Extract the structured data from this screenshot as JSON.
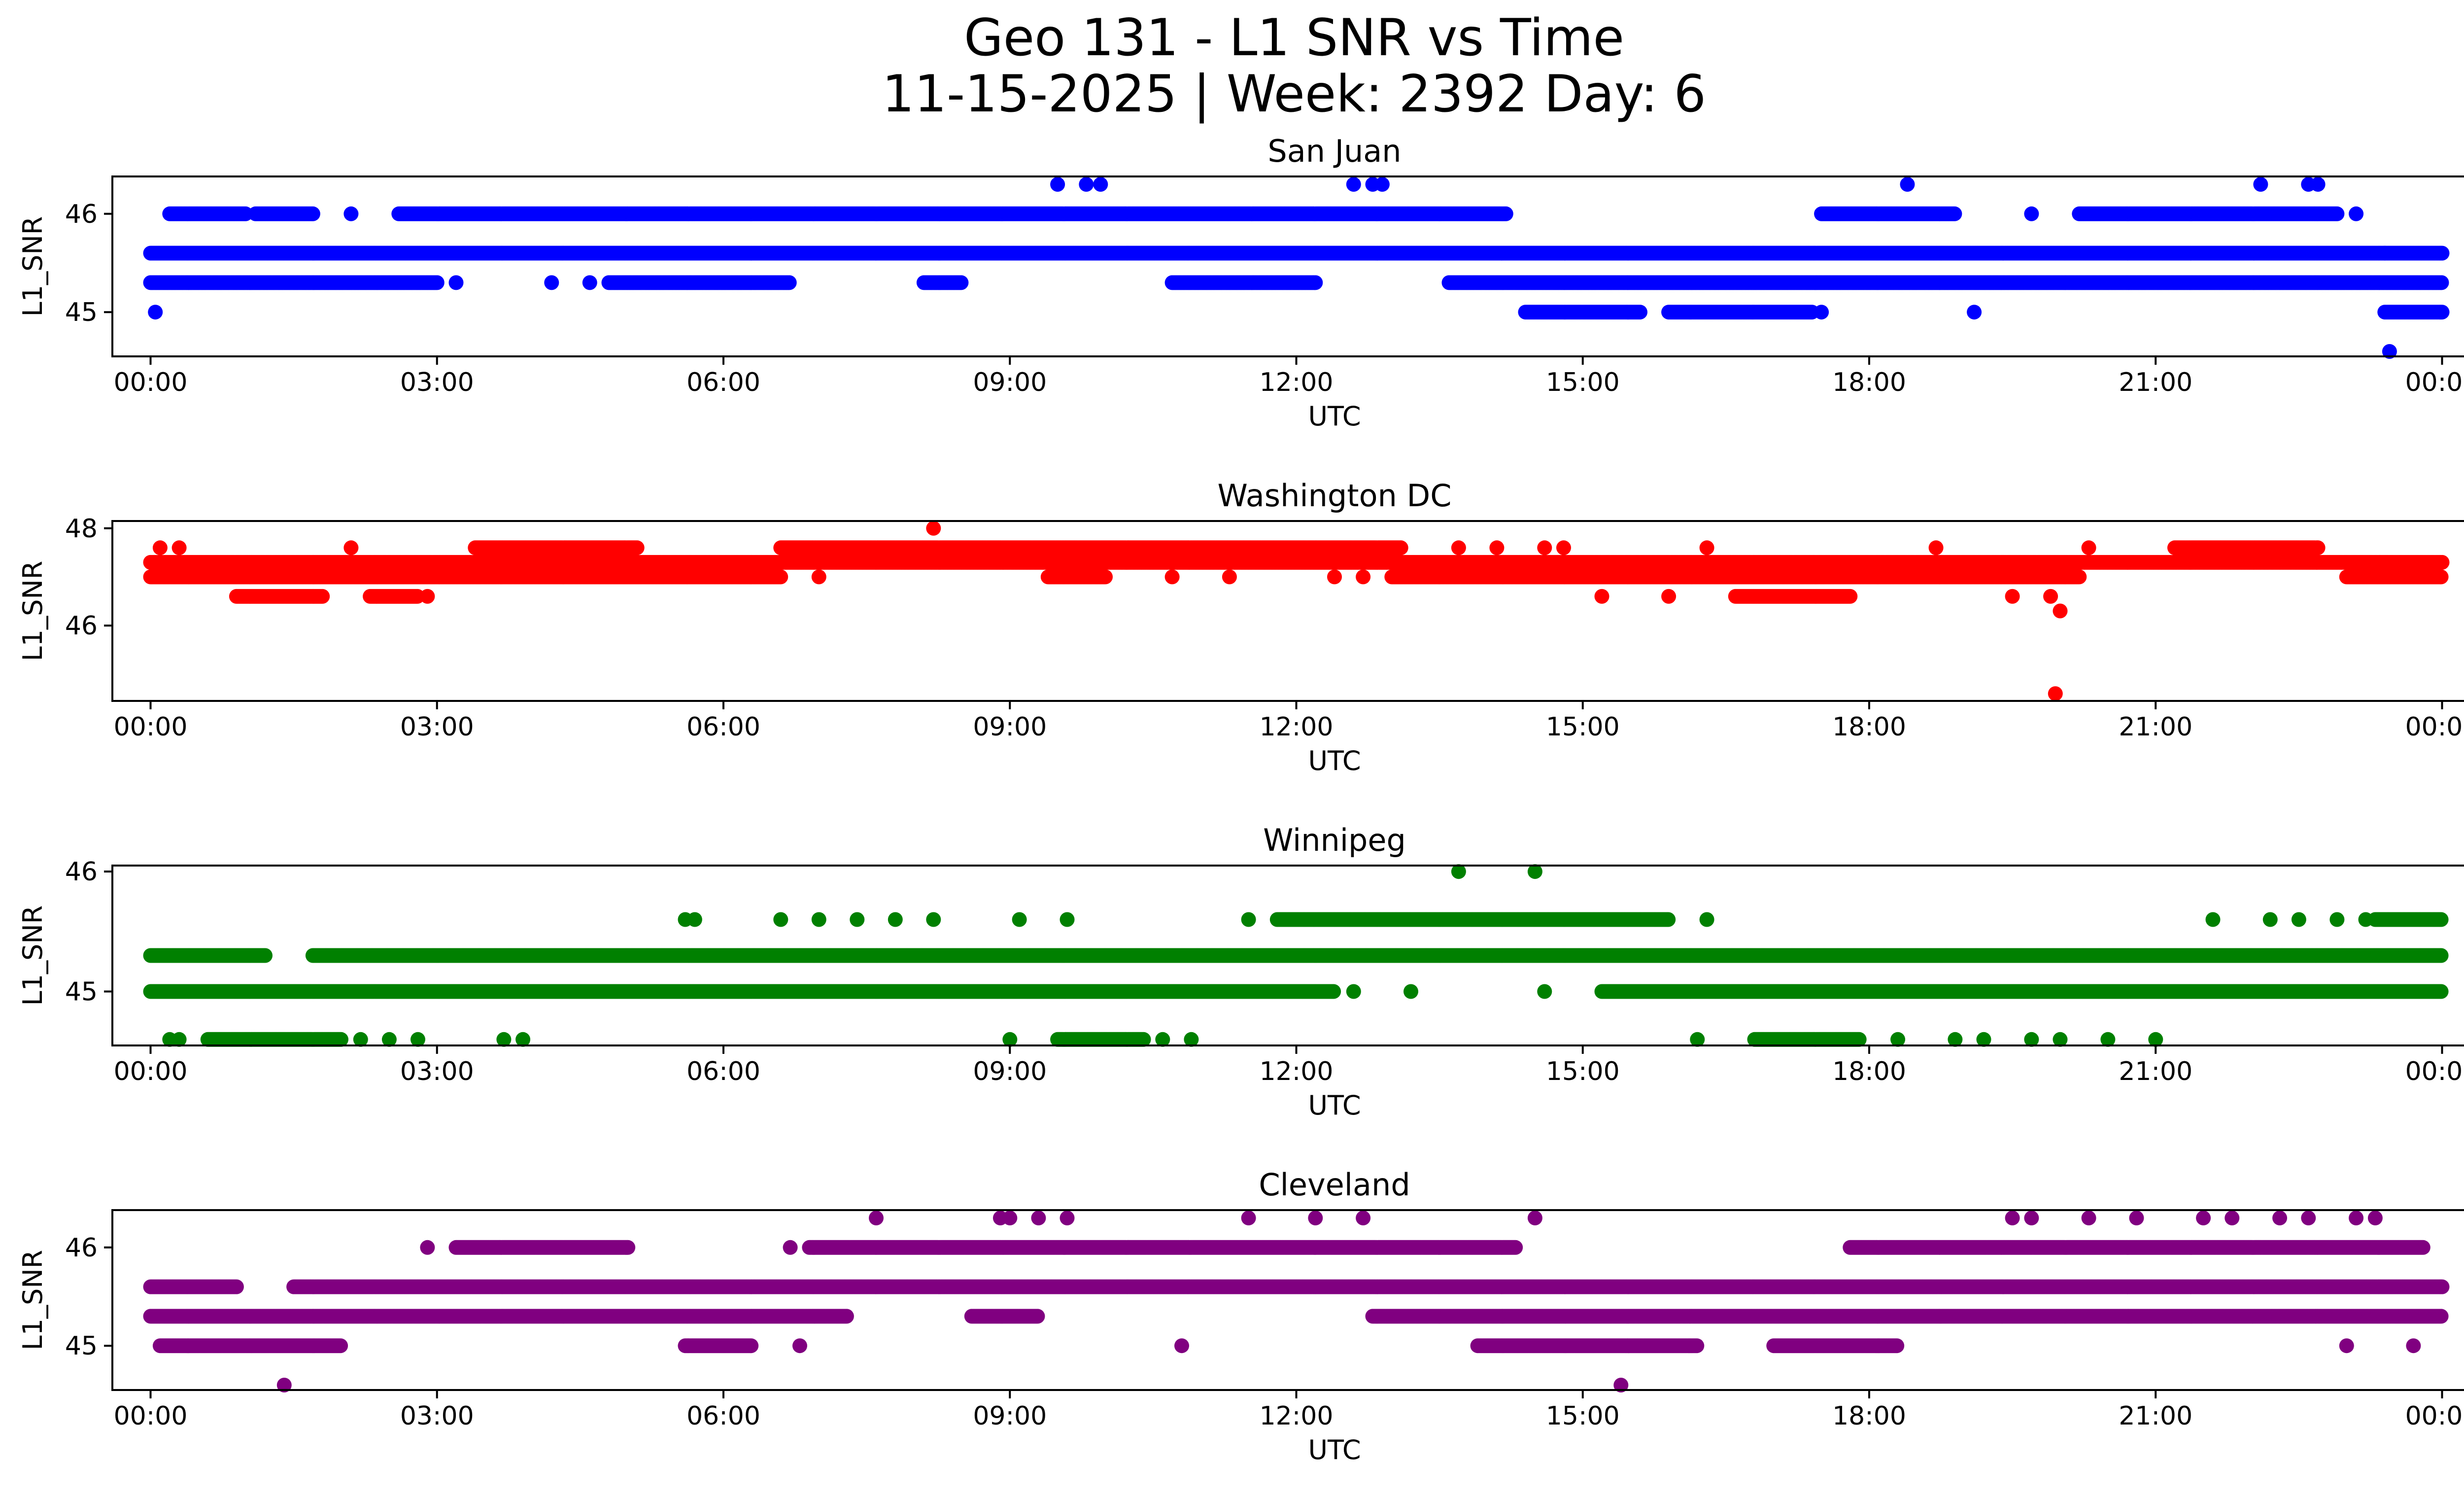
{
  "figure": {
    "title_line1": "Geo 131 - L1 SNR vs Time",
    "title_line2": "11-15-2025 | Week: 2392 Day: 6"
  },
  "chart_data": [
    {
      "type": "scatter",
      "title": "San Juan",
      "xlabel": "UTC",
      "ylabel": "L1_SNR",
      "color": "#0000ff",
      "xlim_hours": [
        -0.4,
        25.2
      ],
      "ylim": [
        44.55,
        46.38
      ],
      "xticks": [
        "00:00",
        "03:00",
        "06:00",
        "09:00",
        "12:00",
        "15:00",
        "18:00",
        "21:00",
        "00:00"
      ],
      "yticks": [
        "45",
        "46"
      ],
      "yticks_values": [
        45,
        46
      ],
      "bands": [
        {
          "y": 45.6,
          "ranges": [
            [
              0,
              24
            ]
          ]
        },
        {
          "y": 46.0,
          "ranges": [
            [
              0.2,
              1.0
            ],
            [
              1.1,
              1.7
            ],
            [
              2.6,
              14.2
            ],
            [
              17.5,
              18.9
            ],
            [
              20.2,
              22.9
            ]
          ]
        },
        {
          "y": 45.3,
          "ranges": [
            [
              0,
              3.0
            ],
            [
              4.8,
              6.7
            ],
            [
              8.1,
              8.5
            ],
            [
              10.7,
              12.2
            ],
            [
              13.6,
              24
            ]
          ]
        },
        {
          "y": 45.0,
          "ranges": [
            [
              14.4,
              15.6
            ],
            [
              15.9,
              17.4
            ],
            [
              23.4,
              24
            ]
          ]
        }
      ],
      "points": [
        {
          "x": 0.05,
          "y": 45.0
        },
        {
          "x": 2.1,
          "y": 46.0
        },
        {
          "x": 3.2,
          "y": 45.3
        },
        {
          "x": 4.2,
          "y": 45.3
        },
        {
          "x": 4.6,
          "y": 45.3
        },
        {
          "x": 9.5,
          "y": 46.3
        },
        {
          "x": 9.8,
          "y": 46.3
        },
        {
          "x": 9.95,
          "y": 46.3
        },
        {
          "x": 12.6,
          "y": 46.3
        },
        {
          "x": 12.8,
          "y": 46.3
        },
        {
          "x": 12.9,
          "y": 46.3
        },
        {
          "x": 17.5,
          "y": 45.0
        },
        {
          "x": 18.4,
          "y": 46.3
        },
        {
          "x": 19.1,
          "y": 45.0
        },
        {
          "x": 19.7,
          "y": 46.0
        },
        {
          "x": 22.1,
          "y": 46.3
        },
        {
          "x": 22.6,
          "y": 46.3
        },
        {
          "x": 22.7,
          "y": 46.3
        },
        {
          "x": 23.1,
          "y": 46.0
        },
        {
          "x": 23.4,
          "y": 45.6
        },
        {
          "x": 23.45,
          "y": 44.6
        }
      ]
    },
    {
      "type": "scatter",
      "title": "Washington DC",
      "xlabel": "UTC",
      "ylabel": "L1_SNR",
      "color": "#ff0000",
      "xlim_hours": [
        -0.4,
        25.2
      ],
      "ylim": [
        44.45,
        48.15
      ],
      "xticks": [
        "00:00",
        "03:00",
        "06:00",
        "09:00",
        "12:00",
        "15:00",
        "18:00",
        "21:00",
        "00:00"
      ],
      "yticks": [
        "46",
        "48"
      ],
      "yticks_values": [
        46,
        48
      ],
      "bands": [
        {
          "y": 47.3,
          "ranges": [
            [
              0,
              24
            ]
          ]
        },
        {
          "y": 47.0,
          "ranges": [
            [
              0,
              6.6
            ],
            [
              9.4,
              10.0
            ],
            [
              13.0,
              20.2
            ],
            [
              23.0,
              24
            ]
          ]
        },
        {
          "y": 47.6,
          "ranges": [
            [
              3.4,
              5.1
            ],
            [
              6.6,
              13.1
            ],
            [
              21.2,
              22.7
            ]
          ]
        },
        {
          "y": 46.6,
          "ranges": [
            [
              0.9,
              1.8
            ],
            [
              2.3,
              2.8
            ],
            [
              16.6,
              17.8
            ]
          ]
        }
      ],
      "points": [
        {
          "x": 0.1,
          "y": 47.6
        },
        {
          "x": 0.3,
          "y": 47.6
        },
        {
          "x": 2.1,
          "y": 47.6
        },
        {
          "x": 2.9,
          "y": 46.6
        },
        {
          "x": 7.0,
          "y": 47.0
        },
        {
          "x": 8.2,
          "y": 48.0
        },
        {
          "x": 10.7,
          "y": 47.0
        },
        {
          "x": 11.3,
          "y": 47.0
        },
        {
          "x": 12.4,
          "y": 47.0
        },
        {
          "x": 12.7,
          "y": 47.0
        },
        {
          "x": 13.7,
          "y": 47.6
        },
        {
          "x": 14.1,
          "y": 47.6
        },
        {
          "x": 14.6,
          "y": 47.6
        },
        {
          "x": 14.8,
          "y": 47.6
        },
        {
          "x": 15.2,
          "y": 46.6
        },
        {
          "x": 15.9,
          "y": 46.6
        },
        {
          "x": 16.3,
          "y": 47.6
        },
        {
          "x": 18.7,
          "y": 47.6
        },
        {
          "x": 19.5,
          "y": 46.6
        },
        {
          "x": 19.9,
          "y": 46.6
        },
        {
          "x": 20.0,
          "y": 46.3
        },
        {
          "x": 19.95,
          "y": 44.6
        },
        {
          "x": 20.3,
          "y": 47.6
        }
      ]
    },
    {
      "type": "scatter",
      "title": "Winnipeg",
      "xlabel": "UTC",
      "ylabel": "L1_SNR",
      "color": "#008000",
      "xlim_hours": [
        -0.4,
        25.2
      ],
      "ylim": [
        44.55,
        46.05
      ],
      "xticks": [
        "00:00",
        "03:00",
        "06:00",
        "09:00",
        "12:00",
        "15:00",
        "18:00",
        "21:00",
        "00:00"
      ],
      "yticks": [
        "45",
        "46"
      ],
      "yticks_values": [
        45,
        46
      ],
      "bands": [
        {
          "y": 45.3,
          "ranges": [
            [
              0,
              1.2
            ],
            [
              1.7,
              24
            ]
          ]
        },
        {
          "y": 45.0,
          "ranges": [
            [
              0,
              12.4
            ],
            [
              15.2,
              24
            ]
          ]
        },
        {
          "y": 45.6,
          "ranges": [
            [
              11.8,
              15.9
            ],
            [
              23.3,
              24
            ]
          ]
        },
        {
          "y": 44.6,
          "ranges": [
            [
              0.6,
              2.0
            ],
            [
              9.5,
              10.4
            ],
            [
              16.8,
              17.9
            ]
          ]
        }
      ],
      "points": [
        {
          "x": 0.2,
          "y": 44.6
        },
        {
          "x": 0.3,
          "y": 44.6
        },
        {
          "x": 2.2,
          "y": 44.6
        },
        {
          "x": 2.5,
          "y": 44.6
        },
        {
          "x": 2.8,
          "y": 44.6
        },
        {
          "x": 3.7,
          "y": 44.6
        },
        {
          "x": 3.9,
          "y": 44.6
        },
        {
          "x": 5.6,
          "y": 45.6
        },
        {
          "x": 5.7,
          "y": 45.6
        },
        {
          "x": 6.6,
          "y": 45.6
        },
        {
          "x": 7.0,
          "y": 45.6
        },
        {
          "x": 7.4,
          "y": 45.6
        },
        {
          "x": 7.8,
          "y": 45.6
        },
        {
          "x": 8.2,
          "y": 45.6
        },
        {
          "x": 9.0,
          "y": 44.6
        },
        {
          "x": 9.1,
          "y": 45.6
        },
        {
          "x": 9.6,
          "y": 45.6
        },
        {
          "x": 10.6,
          "y": 44.6
        },
        {
          "x": 10.9,
          "y": 44.6
        },
        {
          "x": 11.5,
          "y": 45.6
        },
        {
          "x": 12.6,
          "y": 45.0
        },
        {
          "x": 13.2,
          "y": 45.0
        },
        {
          "x": 13.7,
          "y": 46.0
        },
        {
          "x": 14.5,
          "y": 46.0
        },
        {
          "x": 14.6,
          "y": 45.0
        },
        {
          "x": 16.2,
          "y": 44.6
        },
        {
          "x": 16.3,
          "y": 45.6
        },
        {
          "x": 18.3,
          "y": 44.6
        },
        {
          "x": 18.9,
          "y": 44.6
        },
        {
          "x": 19.2,
          "y": 44.6
        },
        {
          "x": 19.7,
          "y": 44.6
        },
        {
          "x": 20.0,
          "y": 44.6
        },
        {
          "x": 20.5,
          "y": 44.6
        },
        {
          "x": 21.0,
          "y": 44.6
        },
        {
          "x": 21.6,
          "y": 45.6
        },
        {
          "x": 22.2,
          "y": 45.6
        },
        {
          "x": 22.5,
          "y": 45.6
        },
        {
          "x": 22.9,
          "y": 45.6
        },
        {
          "x": 23.2,
          "y": 45.6
        }
      ]
    },
    {
      "type": "scatter",
      "title": "Cleveland",
      "xlabel": "UTC",
      "ylabel": "L1_SNR",
      "color": "#800080",
      "xlim_hours": [
        -0.4,
        25.2
      ],
      "ylim": [
        44.55,
        46.38
      ],
      "xticks": [
        "00:00",
        "03:00",
        "06:00",
        "09:00",
        "12:00",
        "15:00",
        "18:00",
        "21:00",
        "00:00"
      ],
      "yticks": [
        "45",
        "46"
      ],
      "yticks_values": [
        45,
        46
      ],
      "bands": [
        {
          "y": 45.6,
          "ranges": [
            [
              0,
              0.9
            ],
            [
              1.5,
              24
            ]
          ]
        },
        {
          "y": 45.3,
          "ranges": [
            [
              0,
              7.3
            ],
            [
              8.6,
              9.3
            ],
            [
              12.8,
              24
            ]
          ]
        },
        {
          "y": 46.0,
          "ranges": [
            [
              3.2,
              5.0
            ],
            [
              6.9,
              14.3
            ],
            [
              17.8,
              23.8
            ]
          ]
        },
        {
          "y": 45.0,
          "ranges": [
            [
              0.1,
              2.0
            ],
            [
              5.6,
              6.3
            ],
            [
              13.9,
              16.2
            ],
            [
              17.0,
              18.3
            ]
          ]
        }
      ],
      "points": [
        {
          "x": 1.4,
          "y": 44.6
        },
        {
          "x": 2.9,
          "y": 46.0
        },
        {
          "x": 6.7,
          "y": 46.0
        },
        {
          "x": 6.8,
          "y": 45.0
        },
        {
          "x": 7.6,
          "y": 46.3
        },
        {
          "x": 8.9,
          "y": 46.3
        },
        {
          "x": 9.0,
          "y": 46.3
        },
        {
          "x": 9.3,
          "y": 46.3
        },
        {
          "x": 9.6,
          "y": 46.3
        },
        {
          "x": 10.8,
          "y": 45.0
        },
        {
          "x": 11.5,
          "y": 46.3
        },
        {
          "x": 12.2,
          "y": 46.3
        },
        {
          "x": 12.7,
          "y": 46.3
        },
        {
          "x": 14.5,
          "y": 46.3
        },
        {
          "x": 15.4,
          "y": 44.6
        },
        {
          "x": 19.5,
          "y": 46.3
        },
        {
          "x": 19.7,
          "y": 46.3
        },
        {
          "x": 20.3,
          "y": 46.3
        },
        {
          "x": 20.8,
          "y": 46.3
        },
        {
          "x": 21.5,
          "y": 46.3
        },
        {
          "x": 21.8,
          "y": 46.3
        },
        {
          "x": 22.3,
          "y": 46.3
        },
        {
          "x": 22.6,
          "y": 46.3
        },
        {
          "x": 23.0,
          "y": 45.0
        },
        {
          "x": 23.1,
          "y": 46.3
        },
        {
          "x": 23.3,
          "y": 46.3
        },
        {
          "x": 23.7,
          "y": 45.0
        }
      ]
    }
  ]
}
